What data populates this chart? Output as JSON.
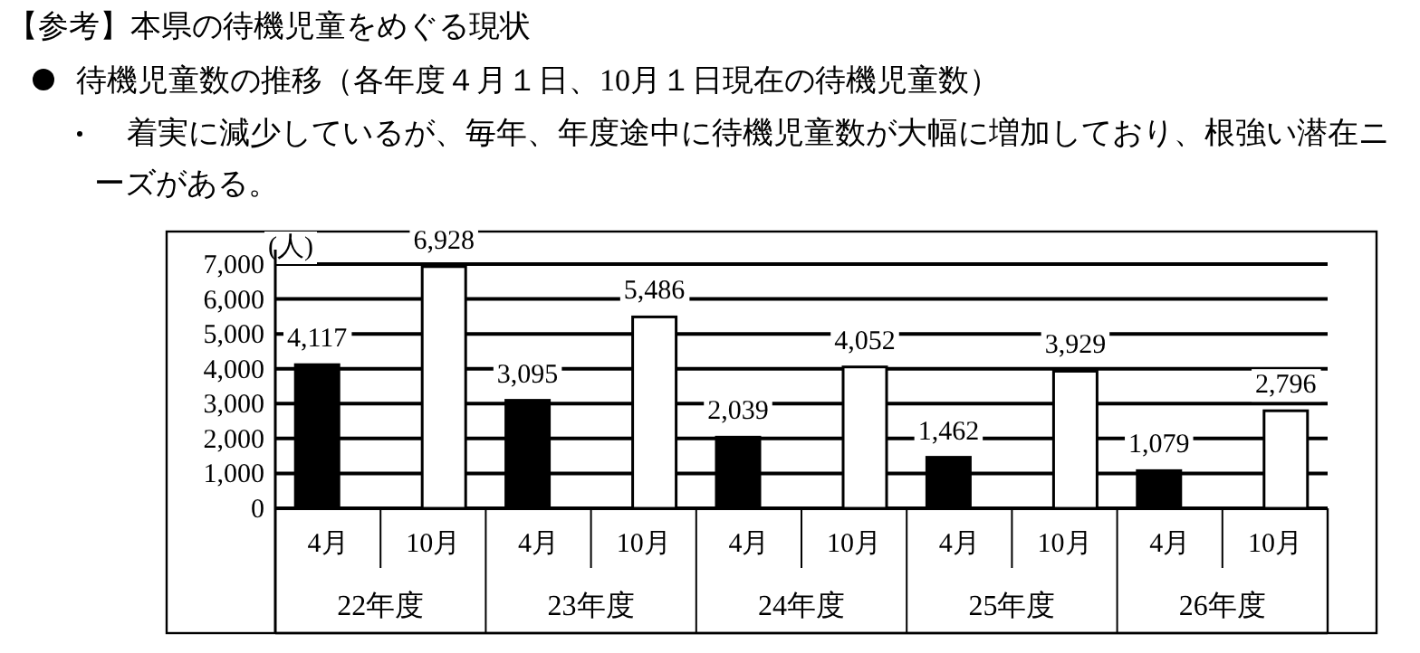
{
  "chart_data": {
    "type": "bar",
    "title": "【参考】本県の待機児童をめぐる現状",
    "subtitle": "待機児童数の推移（各年度４月１日、10月１日現在の待機児童数）",
    "annotations": [
      "着実に減少しているが、毎年、年度途中に待機児童数が大幅に増加しており、根強い潜在ニーズがある。"
    ],
    "ylabel": "(人)",
    "categories": [
      "22年度",
      "23年度",
      "24年度",
      "25年度",
      "26年度"
    ],
    "series": [
      {
        "name": "4月",
        "color": "#000000",
        "values": [
          4117,
          3095,
          2039,
          1462,
          1079
        ],
        "value_labels": [
          "4,117",
          "3,095",
          "2,039",
          "1,462",
          "1,079"
        ]
      },
      {
        "name": "10月",
        "color": "#ffffff",
        "values": [
          6928,
          5486,
          4052,
          3929,
          2796
        ],
        "value_labels": [
          "6,928",
          "5,486",
          "4,052",
          "3,929",
          "2,796"
        ]
      }
    ],
    "ylim": [
      0,
      7000
    ],
    "yticks": [
      0,
      {
        "value": 1000,
        "label": "1,000"
      },
      {
        "value": 2000,
        "label": "2,000"
      },
      {
        "value": 3000,
        "label": "3,000"
      },
      {
        "value": 4000,
        "label": "4,000"
      },
      {
        "value": 5000,
        "label": "5,000"
      },
      {
        "value": 6000,
        "label": "6,000"
      },
      {
        "value": 7000,
        "label": "7,000"
      }
    ],
    "grid": "y",
    "legend": "bottom"
  }
}
